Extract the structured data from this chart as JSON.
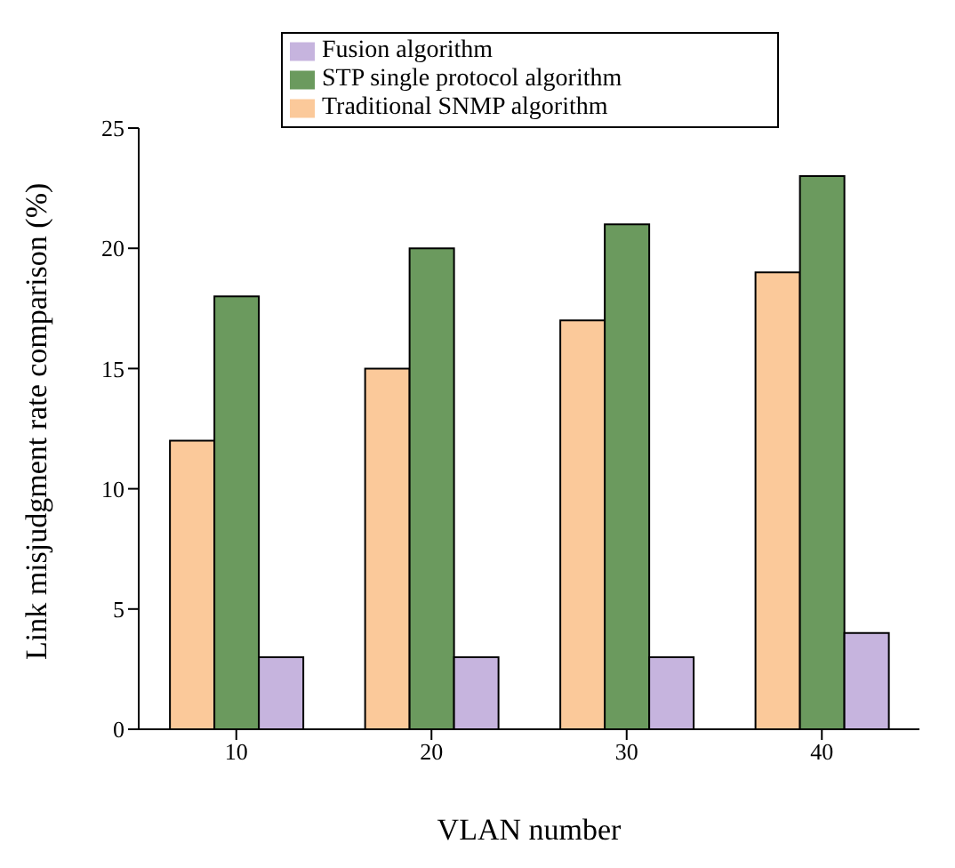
{
  "chart_data": {
    "type": "bar",
    "xlabel": "VLAN number",
    "ylabel": "Link misjudgment rate comparison (%)",
    "categories": [
      "10",
      "20",
      "30",
      "40"
    ],
    "series": [
      {
        "name": "Traditional SNMP algorithm",
        "color": "#fbc99a",
        "values": [
          12,
          15,
          17,
          19
        ]
      },
      {
        "name": "STP single protocol algorithm",
        "color": "#6b9a5e",
        "values": [
          18,
          20,
          21,
          23
        ]
      },
      {
        "name": "Fusion algorithm",
        "color": "#c6b4de",
        "values": [
          3,
          3,
          3,
          4
        ]
      }
    ],
    "ylim": [
      0,
      25
    ],
    "yticks": [
      0,
      5,
      10,
      15,
      20,
      25
    ],
    "grid": false,
    "legend": "top"
  }
}
